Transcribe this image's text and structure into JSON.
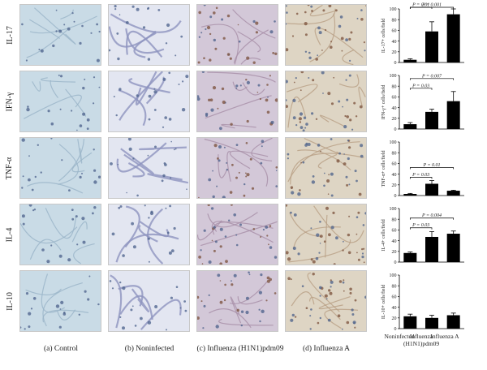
{
  "row_labels": [
    "IL-17",
    "IFN-γ",
    "TNF-α",
    "IL-4",
    "IL-10"
  ],
  "column_captions": [
    "(a) Control",
    "(b) Noninfected",
    "(c) Influenza (H1N1)pdm09",
    "(d) Influenza A"
  ],
  "tile_colors": {
    "control": "#c9dbe6",
    "noninfected": "#e3e6f1",
    "h1n1": "#d3c8d8",
    "influenzaA": "#ded5c4",
    "dots": "#4a5f8a",
    "brown": "#7a4f3a"
  },
  "chart_data": [
    {
      "type": "bar",
      "categories": [
        "Noninfected",
        "Influenza (H1N1)pdm09",
        "Influenza A"
      ],
      "values": [
        5,
        58,
        90
      ],
      "errors": [
        2,
        18,
        10
      ],
      "ylabel": "IL-17+ cells/field",
      "ylim": [
        0,
        100
      ],
      "yticks": [
        0,
        20,
        40,
        60,
        80,
        100
      ],
      "comparisons": [
        {
          "from": 0,
          "to": 1,
          "label": "P = 0.01"
        },
        {
          "from": 0,
          "to": 2,
          "label": "P = 0.001"
        }
      ]
    },
    {
      "type": "bar",
      "categories": [
        "Noninfected",
        "Influenza (H1N1)pdm09",
        "Influenza A"
      ],
      "values": [
        9,
        32,
        52
      ],
      "errors": [
        3,
        5,
        18
      ],
      "ylabel": "IFN-γ+ cells/field",
      "ylim": [
        0,
        100
      ],
      "yticks": [
        0,
        20,
        40,
        60,
        80,
        100
      ],
      "comparisons": [
        {
          "from": 0,
          "to": 1,
          "label": "P = 0.03"
        },
        {
          "from": 0,
          "to": 2,
          "label": "P = 0.007"
        }
      ]
    },
    {
      "type": "bar",
      "categories": [
        "Noninfected",
        "Influenza (H1N1)pdm09",
        "Influenza A"
      ],
      "values": [
        3,
        22,
        9
      ],
      "errors": [
        1,
        6,
        1
      ],
      "ylabel": "TNF-α+ cells/field",
      "ylim": [
        0,
        100
      ],
      "yticks": [
        0,
        20,
        40,
        60,
        80,
        100
      ],
      "comparisons": [
        {
          "from": 0,
          "to": 1,
          "label": "P = 0.03"
        },
        {
          "from": 0,
          "to": 2,
          "label": "P = 0.01"
        }
      ]
    },
    {
      "type": "bar",
      "categories": [
        "Noninfected",
        "Influenza (H1N1)pdm09",
        "Influenza A"
      ],
      "values": [
        17,
        47,
        53
      ],
      "errors": [
        2,
        10,
        5
      ],
      "ylabel": "IL-4+ cells/field",
      "ylim": [
        0,
        100
      ],
      "yticks": [
        0,
        20,
        40,
        60,
        80,
        100
      ],
      "comparisons": [
        {
          "from": 0,
          "to": 1,
          "label": "P = 0.03"
        },
        {
          "from": 0,
          "to": 2,
          "label": "P = 0.004"
        }
      ]
    },
    {
      "type": "bar",
      "categories": [
        "Noninfected",
        "Influenza (H1N1)pdm09",
        "Influenza A"
      ],
      "values": [
        23,
        20,
        25
      ],
      "errors": [
        4,
        5,
        4
      ],
      "ylabel": "IL-10+ cells/field",
      "ylim": [
        0,
        100
      ],
      "yticks": [
        0,
        20,
        40,
        60,
        80,
        100
      ],
      "comparisons": []
    }
  ],
  "x_category_labels": [
    "Noninfected",
    "Influenza\n(H1N1)pdm09",
    "Influenza A"
  ]
}
